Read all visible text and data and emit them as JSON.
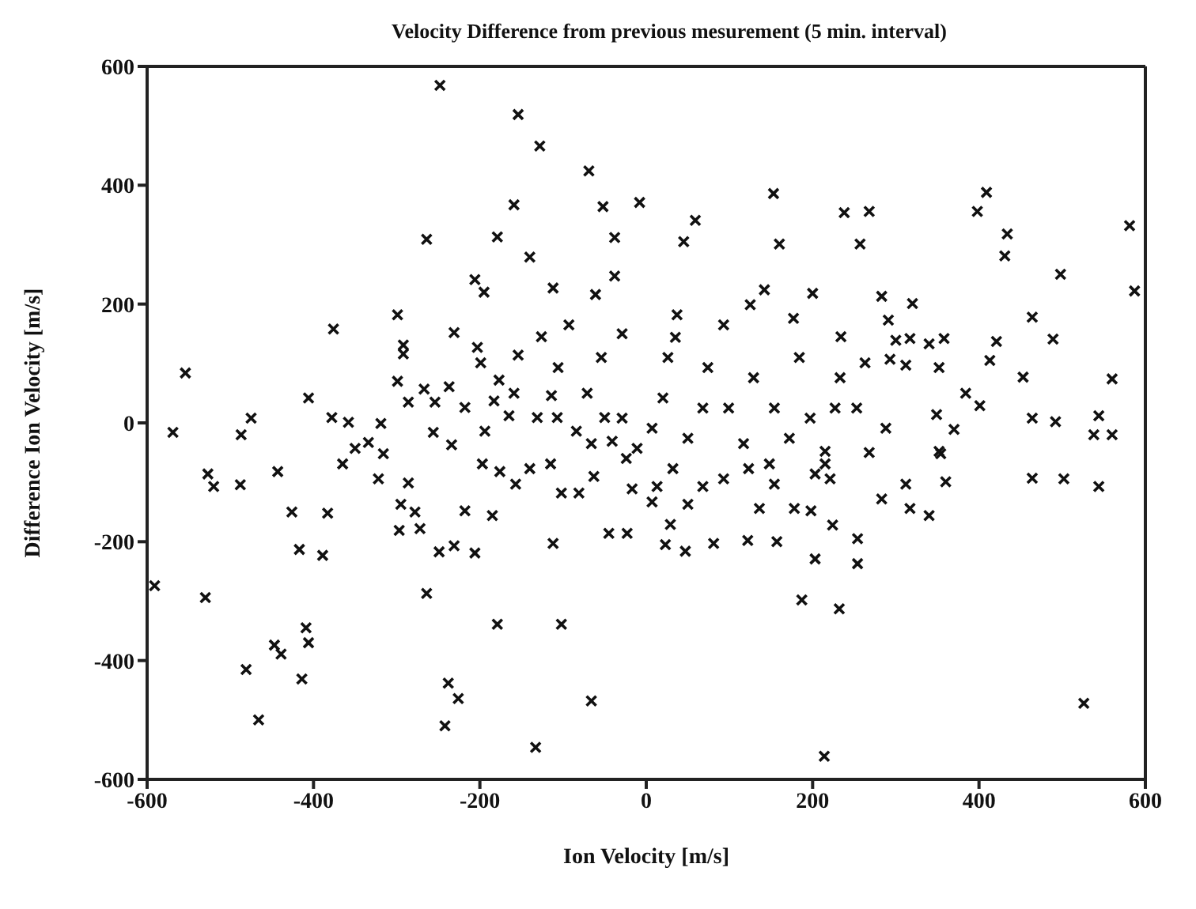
{
  "chart_data": {
    "type": "scatter",
    "title": "Velocity Difference from previous mesurement (5 min. interval)",
    "xlabel": "Ion Velocity [m/s]",
    "ylabel": "Difference Ion Velocity [m/s]",
    "xlim": [
      -600,
      600
    ],
    "ylim": [
      -600,
      600
    ],
    "xticks": [
      -600,
      -400,
      -200,
      0,
      200,
      400,
      600
    ],
    "yticks": [
      -600,
      -400,
      -200,
      0,
      200,
      400,
      600
    ],
    "grid": false,
    "marker": "cross",
    "series": [
      {
        "color": "#111111",
        "x": [
          -248,
          -154,
          -128,
          -69,
          -159,
          -52,
          -264,
          -179,
          -38,
          -140,
          -38,
          -206,
          -195,
          -112,
          -61,
          -299,
          -376,
          -231,
          -93,
          -29,
          -292,
          -292,
          -203,
          -199,
          -126,
          -154,
          -106,
          -54,
          -554,
          -299,
          -177,
          -267,
          -237,
          -159,
          -114,
          -71,
          -406,
          -286,
          -254,
          -218,
          -183,
          -165,
          -131,
          -107,
          -50,
          -475,
          -378,
          -358,
          -319,
          -569,
          -487,
          -256,
          -194,
          -84,
          -334,
          -350,
          -365,
          -316,
          -443,
          -527,
          -520,
          -488,
          -234,
          -197,
          -176,
          -140,
          -115,
          -66,
          -41,
          -322,
          -286,
          -157,
          -63,
          -24,
          -426,
          -383,
          -417,
          -389,
          -297,
          -272,
          -278,
          -295,
          -249,
          -231,
          -206,
          -218,
          -185,
          -112,
          -102,
          -81,
          -45,
          -23,
          -264,
          -591,
          -530,
          -179,
          -102,
          -409,
          -406,
          -447,
          -439,
          -481,
          -414,
          -466,
          -238,
          -226,
          -242,
          -66,
          -133,
          -8,
          153,
          59,
          45,
          160,
          238,
          268,
          257,
          398,
          409,
          434,
          431,
          498,
          581,
          587,
          142,
          125,
          200,
          283,
          320,
          37,
          177,
          93,
          291,
          464,
          489,
          421,
          413,
          35,
          234,
          300,
          317,
          358,
          340,
          293,
          312,
          352,
          453,
          560,
          384,
          401,
          349,
          370,
          464,
          492,
          544,
          538,
          560,
          464,
          502,
          544,
          360,
          312,
          352,
          268,
          26,
          74,
          129,
          184,
          233,
          263,
          20,
          68,
          99,
          154,
          197,
          227,
          253,
          7,
          50,
          117,
          172,
          215,
          288,
          32,
          93,
          148,
          203,
          -29,
          -11,
          354,
          283,
          317,
          340,
          224,
          254,
          254,
          203,
          187,
          232,
          526,
          214,
          23,
          47,
          81,
          122,
          157,
          29,
          136,
          178,
          198,
          7,
          50,
          -17,
          13,
          68,
          154,
          221,
          215,
          123
        ],
        "values": [
          568,
          519,
          466,
          424,
          367,
          364,
          309,
          313,
          312,
          279,
          247,
          241,
          220,
          227,
          216,
          182,
          158,
          152,
          165,
          150,
          131,
          116,
          127,
          101,
          145,
          114,
          93,
          110,
          84,
          70,
          72,
          57,
          61,
          50,
          46,
          50,
          42,
          35,
          35,
          26,
          37,
          12,
          9,
          9,
          9,
          8,
          9,
          1,
          -1,
          -16,
          -20,
          -16,
          -14,
          -14,
          -33,
          -43,
          -69,
          -52,
          -82,
          -86,
          -107,
          -104,
          -37,
          -69,
          -82,
          -77,
          -69,
          -35,
          -31,
          -94,
          -101,
          -103,
          -90,
          -60,
          -150,
          -152,
          -213,
          -223,
          -181,
          -178,
          -150,
          -137,
          -217,
          -207,
          -219,
          -148,
          -156,
          -203,
          -118,
          -118,
          -186,
          -186,
          -287,
          -274,
          -294,
          -339,
          -339,
          -345,
          -370,
          -374,
          -389,
          -415,
          -431,
          -500,
          -438,
          -464,
          -510,
          -468,
          -546,
          371,
          386,
          341,
          305,
          301,
          354,
          356,
          301,
          356,
          388,
          318,
          281,
          250,
          332,
          222,
          224,
          199,
          218,
          213,
          201,
          182,
          176,
          165,
          173,
          178,
          141,
          137,
          105,
          144,
          145,
          139,
          142,
          142,
          133,
          107,
          97,
          93,
          77,
          74,
          50,
          29,
          14,
          -11,
          8,
          2,
          12,
          -20,
          -20,
          -93,
          -94,
          -107,
          -99,
          -103,
          -48,
          -50,
          110,
          93,
          76,
          110,
          76,
          101,
          42,
          25,
          25,
          25,
          8,
          25,
          25,
          -9,
          -26,
          -35,
          -26,
          -48,
          -9,
          -77,
          -94,
          -69,
          -86,
          8,
          -43,
          -52,
          -128,
          -144,
          -156,
          -172,
          -195,
          -237,
          -229,
          -298,
          -313,
          -472,
          -561,
          -205,
          -216,
          -203,
          -198,
          -200,
          -171,
          -144,
          -144,
          -148,
          -133,
          -137,
          -111,
          -107,
          -107,
          -103,
          -94,
          -69,
          -77
        ]
      }
    ]
  }
}
